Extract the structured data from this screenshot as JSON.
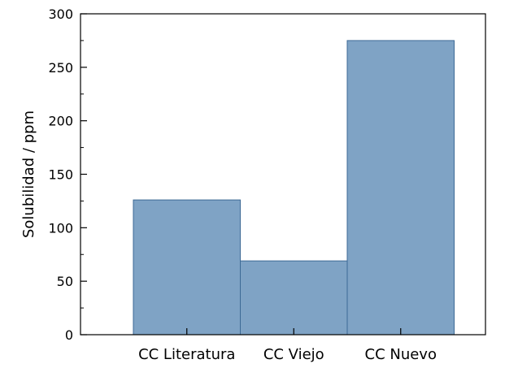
{
  "chart_data": {
    "type": "bar",
    "categories": [
      "CC Literatura",
      "CC Viejo",
      "CC Nuevo"
    ],
    "values": [
      126,
      69,
      275
    ],
    "title": "",
    "xlabel": "",
    "ylabel": "Solubilidad / ppm",
    "ylim": [
      0,
      300
    ],
    "yticks": [
      0,
      50,
      100,
      150,
      200,
      250,
      300
    ],
    "ytick_labels": [
      "0",
      "50",
      "100",
      "150",
      "200",
      "250",
      "300"
    ],
    "grid": false,
    "bar_color": "#7fa3c5",
    "bar_edge_color": "#3d6a96"
  }
}
